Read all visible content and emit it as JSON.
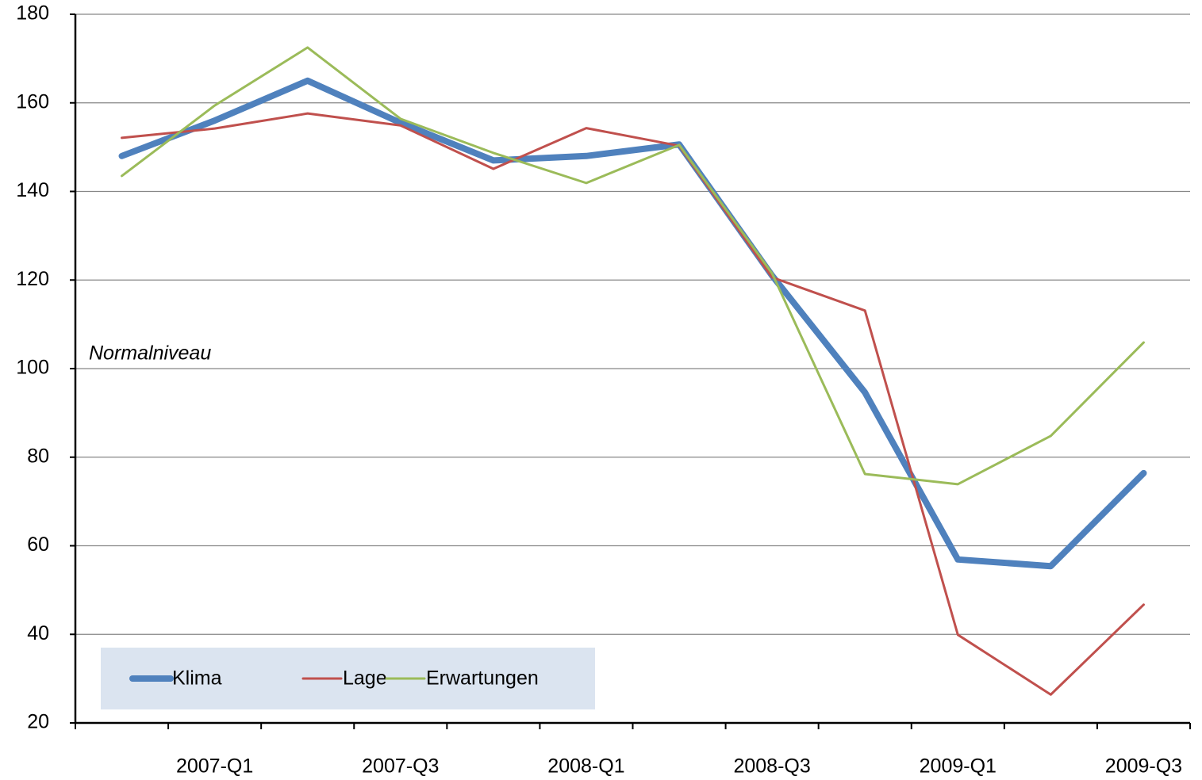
{
  "chart_data": {
    "type": "line",
    "categories": [
      null,
      "2007-Q1",
      null,
      "2007-Q3",
      null,
      "2008-Q1",
      null,
      "2008-Q3",
      null,
      "2009-Q1",
      null,
      "2009-Q3"
    ],
    "series": [
      {
        "name": "Klima",
        "color": "#4f81bd",
        "values": [
          148,
          156,
          165,
          155.5,
          147,
          148,
          150.6,
          121,
          94.6,
          56.9,
          55.4,
          76.4
        ]
      },
      {
        "name": "Lage",
        "color": "#c0504d",
        "values": [
          152.1,
          154.2,
          157.6,
          154.9,
          145.1,
          154.3,
          150.3,
          120.6,
          113.1,
          39.9,
          26.4,
          46.7
        ]
      },
      {
        "name": "Erwartungen",
        "color": "#9bbb59",
        "values": [
          143.5,
          159.4,
          172.5,
          156.4,
          148.7,
          141.9,
          150.5,
          121.5,
          76.2,
          73.9,
          84.8,
          105.9
        ]
      }
    ],
    "annotation": "Normalniveau",
    "ylim": [
      20,
      180
    ],
    "yticks": [
      20,
      40,
      60,
      80,
      100,
      120,
      140,
      160,
      180
    ],
    "grid": true,
    "legend": "lower left"
  }
}
